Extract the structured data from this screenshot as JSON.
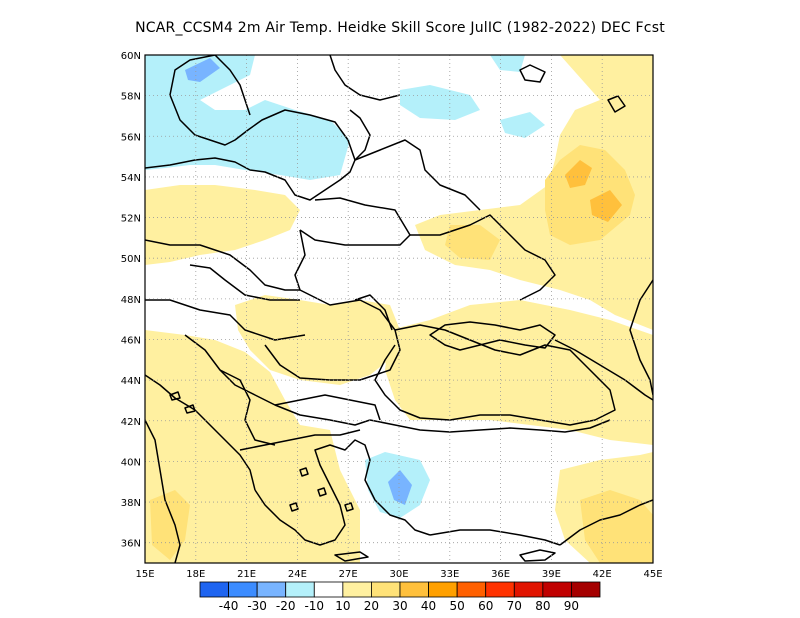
{
  "title": "NCAR_CCSM4  2m Air Temp. Heidke Skill Score JulIC (1982-2022) DEC Fcst",
  "map": {
    "lat_labels": [
      "60N",
      "58N",
      "56N",
      "54N",
      "52N",
      "50N",
      "48N",
      "46N",
      "44N",
      "42N",
      "40N",
      "38N",
      "36N"
    ],
    "lon_labels": [
      "15E",
      "18E",
      "21E",
      "24E",
      "27E",
      "30E",
      "33E",
      "36E",
      "39E",
      "42E",
      "45E"
    ],
    "lat_range": [
      35,
      60
    ],
    "lon_range": [
      15,
      45
    ],
    "gridlines": "dotted"
  },
  "colorbar": {
    "labels": [
      "-40",
      "-30",
      "-20",
      "-10",
      "10",
      "20",
      "30",
      "40",
      "50",
      "60",
      "70",
      "80",
      "90"
    ],
    "colors": [
      "#1e64f0",
      "#3c8cff",
      "#78b4ff",
      "#b4f0fa",
      "#ffffff",
      "#fff0a0",
      "#ffe278",
      "#ffc03c",
      "#ffa000",
      "#ff6000",
      "#ff3200",
      "#e11400",
      "#c00000",
      "#a50000"
    ]
  },
  "contours": {
    "neg_light": "#b4f0fa",
    "neg_mid": "#78b4ff",
    "neg_strong": "#3c8cff",
    "pos_light": "#fff0a0",
    "pos_mid": "#ffe278",
    "pos_strong": "#ffc03c"
  }
}
